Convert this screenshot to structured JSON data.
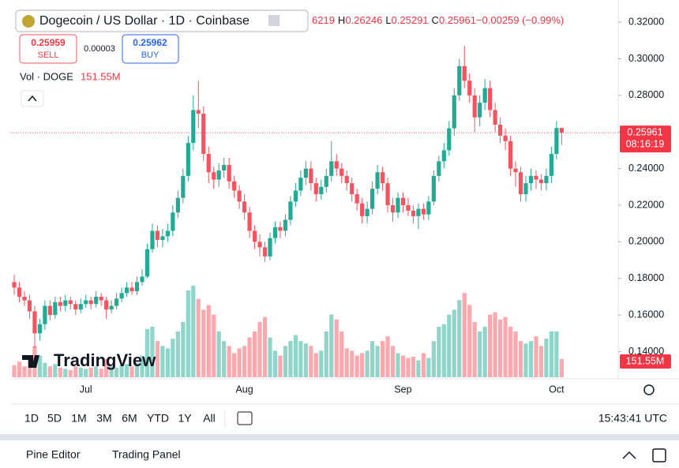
{
  "legend": {
    "symbol": "Dogecoin / US Dollar · 1D · Coinbase",
    "values": [
      "6219",
      "H",
      "0.26246",
      "L",
      "0.25291",
      "C",
      "0.25961",
      "−0.00259 (−0.99%)"
    ]
  },
  "trade": {
    "sell_price": "0.25959",
    "sell": "SELL",
    "spread": "0.00003",
    "buy_price": "0.25962",
    "buy": "BUY"
  },
  "volume_legend": {
    "label": "Vol · DOGE",
    "value": "151.55M"
  },
  "logo": "TradingView",
  "toolbar": {
    "ranges": [
      "1D",
      "5D",
      "1M",
      "3M",
      "6M",
      "YTD",
      "1Y",
      "All"
    ],
    "time": "15:43:41 UTC"
  },
  "bottom_panel": [
    "Pine Editor",
    "Trading Panel"
  ],
  "chart_data": {
    "type": "candlestick",
    "up_color": "#22ab94",
    "down_color": "#f7525f",
    "categories": [
      null,
      null,
      null,
      null,
      null,
      null,
      null,
      null,
      null,
      null,
      null,
      null,
      null,
      null,
      "Jul",
      null,
      null,
      null,
      null,
      null,
      null,
      null,
      null,
      null,
      null,
      null,
      null,
      null,
      null,
      null,
      null,
      null,
      null,
      null,
      null,
      null,
      null,
      null,
      null,
      null,
      null,
      null,
      null,
      null,
      null,
      "Aug",
      null,
      null,
      null,
      null,
      null,
      null,
      null,
      null,
      null,
      null,
      null,
      null,
      null,
      null,
      null,
      null,
      null,
      null,
      null,
      null,
      null,
      null,
      null,
      null,
      null,
      null,
      null,
      null,
      null,
      null,
      "Sep",
      null,
      null,
      null,
      null,
      null,
      null,
      null,
      null,
      null,
      null,
      null,
      null,
      null,
      null,
      null,
      null,
      null,
      null,
      null,
      null,
      null,
      null,
      null,
      null,
      null,
      null,
      null,
      null,
      null,
      "Oct",
      null
    ],
    "open": [
      0.178,
      0.175,
      0.17,
      0.168,
      0.162,
      0.15,
      0.155,
      0.165,
      0.16,
      0.167,
      0.165,
      0.168,
      0.166,
      0.163,
      0.166,
      0.168,
      0.166,
      0.17,
      0.168,
      0.163,
      0.165,
      0.169,
      0.172,
      0.175,
      0.173,
      0.178,
      0.181,
      0.196,
      0.206,
      0.201,
      0.203,
      0.206,
      0.216,
      0.224,
      0.236,
      0.254,
      0.272,
      0.27,
      0.248,
      0.238,
      0.234,
      0.239,
      0.242,
      0.233,
      0.228,
      0.222,
      0.216,
      0.206,
      0.2,
      0.197,
      0.192,
      0.202,
      0.208,
      0.206,
      0.212,
      0.222,
      0.228,
      0.235,
      0.24,
      0.232,
      0.226,
      0.23,
      0.236,
      0.244,
      0.24,
      0.236,
      0.232,
      0.226,
      0.221,
      0.214,
      0.218,
      0.229,
      0.238,
      0.232,
      0.22,
      0.216,
      0.224,
      0.22,
      0.217,
      0.214,
      0.218,
      0.215,
      0.222,
      0.236,
      0.244,
      0.25,
      0.262,
      0.28,
      0.296,
      0.288,
      0.28,
      0.268,
      0.276,
      0.284,
      0.272,
      0.264,
      0.258,
      0.255,
      0.24,
      0.238,
      0.226,
      0.232,
      0.236,
      0.234,
      0.232,
      0.236,
      0.248,
      0.26219
    ],
    "high": [
      0.182,
      0.178,
      0.173,
      0.171,
      0.165,
      0.158,
      0.168,
      0.168,
      0.17,
      0.17,
      0.171,
      0.17,
      0.168,
      0.169,
      0.171,
      0.17,
      0.173,
      0.172,
      0.17,
      0.168,
      0.172,
      0.175,
      0.178,
      0.178,
      0.181,
      0.185,
      0.199,
      0.21,
      0.209,
      0.207,
      0.21,
      0.22,
      0.228,
      0.24,
      0.258,
      0.28,
      0.288,
      0.274,
      0.252,
      0.241,
      0.243,
      0.246,
      0.246,
      0.236,
      0.231,
      0.226,
      0.219,
      0.209,
      0.204,
      0.2,
      0.205,
      0.211,
      0.211,
      0.215,
      0.225,
      0.232,
      0.239,
      0.244,
      0.244,
      0.235,
      0.234,
      0.24,
      0.255,
      0.248,
      0.243,
      0.239,
      0.235,
      0.229,
      0.224,
      0.222,
      0.233,
      0.242,
      0.241,
      0.235,
      0.224,
      0.227,
      0.227,
      0.224,
      0.22,
      0.221,
      0.221,
      0.225,
      0.239,
      0.247,
      0.254,
      0.266,
      0.284,
      0.3,
      0.307,
      0.292,
      0.284,
      0.28,
      0.289,
      0.288,
      0.276,
      0.268,
      0.262,
      0.258,
      0.244,
      0.241,
      0.236,
      0.24,
      0.239,
      0.237,
      0.24,
      0.252,
      0.266,
      0.26246
    ],
    "low": [
      0.171,
      0.167,
      0.165,
      0.158,
      0.142,
      0.146,
      0.152,
      0.157,
      0.158,
      0.162,
      0.162,
      0.163,
      0.16,
      0.161,
      0.164,
      0.163,
      0.164,
      0.165,
      0.158,
      0.161,
      0.163,
      0.167,
      0.17,
      0.171,
      0.171,
      0.176,
      0.18,
      0.194,
      0.197,
      0.197,
      0.2,
      0.203,
      0.213,
      0.221,
      0.233,
      0.25,
      0.262,
      0.244,
      0.232,
      0.229,
      0.23,
      0.235,
      0.229,
      0.224,
      0.218,
      0.212,
      0.202,
      0.196,
      0.192,
      0.189,
      0.19,
      0.199,
      0.202,
      0.203,
      0.209,
      0.219,
      0.225,
      0.231,
      0.228,
      0.222,
      0.223,
      0.227,
      0.233,
      0.236,
      0.232,
      0.228,
      0.222,
      0.217,
      0.21,
      0.21,
      0.215,
      0.226,
      0.228,
      0.216,
      0.211,
      0.213,
      0.216,
      0.214,
      0.21,
      0.207,
      0.212,
      0.212,
      0.22,
      0.233,
      0.24,
      0.247,
      0.258,
      0.277,
      0.284,
      0.276,
      0.26,
      0.263,
      0.272,
      0.268,
      0.26,
      0.254,
      0.25,
      0.236,
      0.23,
      0.222,
      0.222,
      0.228,
      0.229,
      0.228,
      0.228,
      0.232,
      0.245,
      0.25291
    ],
    "close": [
      0.175,
      0.17,
      0.168,
      0.162,
      0.15,
      0.155,
      0.165,
      0.16,
      0.167,
      0.165,
      0.168,
      0.166,
      0.163,
      0.166,
      0.168,
      0.166,
      0.17,
      0.168,
      0.163,
      0.165,
      0.169,
      0.172,
      0.175,
      0.173,
      0.178,
      0.181,
      0.196,
      0.206,
      0.201,
      0.203,
      0.206,
      0.216,
      0.224,
      0.236,
      0.254,
      0.272,
      0.27,
      0.248,
      0.238,
      0.234,
      0.239,
      0.242,
      0.233,
      0.228,
      0.222,
      0.216,
      0.206,
      0.2,
      0.197,
      0.192,
      0.202,
      0.208,
      0.206,
      0.212,
      0.222,
      0.228,
      0.235,
      0.24,
      0.232,
      0.226,
      0.23,
      0.236,
      0.244,
      0.24,
      0.236,
      0.232,
      0.226,
      0.221,
      0.214,
      0.218,
      0.229,
      0.238,
      0.232,
      0.22,
      0.216,
      0.224,
      0.22,
      0.217,
      0.214,
      0.218,
      0.215,
      0.222,
      0.236,
      0.244,
      0.25,
      0.262,
      0.28,
      0.296,
      0.288,
      0.28,
      0.268,
      0.276,
      0.284,
      0.272,
      0.264,
      0.258,
      0.255,
      0.24,
      0.238,
      0.226,
      0.232,
      0.236,
      0.234,
      0.232,
      0.236,
      0.248,
      0.26219,
      0.25961
    ],
    "volume": [
      100,
      130,
      90,
      150,
      260,
      180,
      120,
      90,
      110,
      80,
      70,
      60,
      90,
      80,
      70,
      80,
      90,
      70,
      150,
      90,
      80,
      100,
      110,
      90,
      120,
      180,
      400,
      420,
      300,
      260,
      240,
      320,
      380,
      460,
      720,
      760,
      650,
      560,
      600,
      520,
      380,
      300,
      260,
      200,
      240,
      260,
      330,
      380,
      460,
      500,
      330,
      220,
      180,
      260,
      300,
      350,
      300,
      280,
      260,
      200,
      220,
      380,
      520,
      480,
      380,
      240,
      220,
      180,
      200,
      220,
      300,
      260,
      300,
      340,
      260,
      200,
      180,
      160,
      170,
      140,
      200,
      160,
      300,
      420,
      440,
      520,
      560,
      640,
      700,
      600,
      460,
      380,
      420,
      520,
      540,
      480,
      500,
      420,
      380,
      300,
      280,
      300,
      340,
      260,
      320,
      380,
      380,
      151.55
    ],
    "last_price_label": "0.25961",
    "countdown": "08:16:19",
    "last_volume_label": "151.55M",
    "ylim": [
      0.126,
      0.3278
    ],
    "yticks": [
      {
        "value": 0.32,
        "label": "0.32000"
      },
      {
        "value": 0.3,
        "label": "0.30000"
      },
      {
        "value": 0.28,
        "label": "0.28000"
      },
      {
        "value": 0.26,
        "label": "0.26000"
      },
      {
        "value": 0.24,
        "label": "0.24000"
      },
      {
        "value": 0.22,
        "label": "0.22000"
      },
      {
        "value": 0.2,
        "label": "0.20000"
      },
      {
        "value": 0.18,
        "label": "0.18000"
      },
      {
        "value": 0.16,
        "label": "0.16000"
      },
      {
        "value": 0.14,
        "label": "0.14000"
      }
    ]
  }
}
